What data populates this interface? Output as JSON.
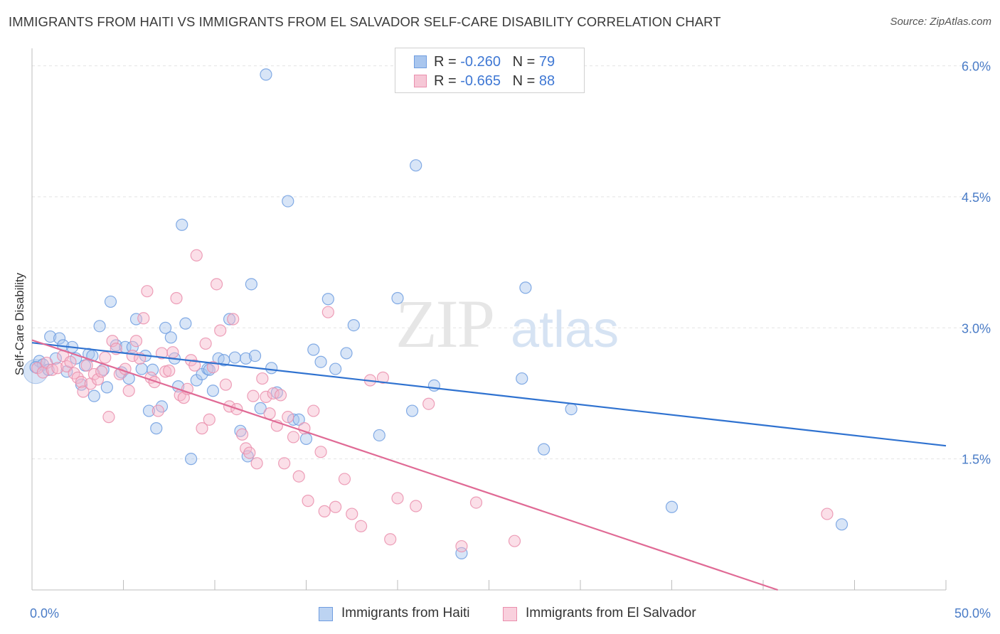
{
  "title": "IMMIGRANTS FROM HAITI VS IMMIGRANTS FROM EL SALVADOR SELF-CARE DISABILITY CORRELATION CHART",
  "source": "Source: ZipAtlas.com",
  "watermark": "ZIPatlas",
  "colors": {
    "haiti_fill": "#a9c6ee",
    "haiti_stroke": "#6f9de0",
    "haiti_line": "#2f72d0",
    "elsalvador_fill": "#f6b8cc",
    "elsalvador_stroke": "#ea8fad",
    "elsalvador_line": "#e06a95",
    "tick_text": "#4a7cc7"
  },
  "stats": {
    "haiti": {
      "r_label": "R =",
      "r_value": "-0.260",
      "n_label": "N =",
      "n_value": "79"
    },
    "elsalvador": {
      "r_label": "R =",
      "r_value": "-0.665",
      "n_label": "N =",
      "n_value": "88"
    }
  },
  "legend": {
    "haiti": "Immigrants from Haiti",
    "elsalvador": "Immigrants from El Salvador"
  },
  "chart_data": {
    "type": "scatter",
    "title": "IMMIGRANTS FROM HAITI VS IMMIGRANTS FROM EL SALVADOR SELF-CARE DISABILITY CORRELATION CHART",
    "ylabel": "Self-Care Disability",
    "xlabel": "",
    "xlim": [
      0,
      50
    ],
    "ylim": [
      0,
      6.2
    ],
    "x_tick_labels": [
      "0.0%",
      "50.0%"
    ],
    "y_ticks": [
      1.5,
      3.0,
      4.5,
      6.0
    ],
    "y_tick_labels": [
      "1.5%",
      "3.0%",
      "4.5%",
      "6.0%"
    ],
    "grid": true,
    "legend_position": "bottom",
    "series": [
      {
        "name": "Immigrants from Haiti",
        "trend": {
          "x": [
            0,
            50
          ],
          "y": [
            2.83,
            1.65
          ]
        },
        "points": [
          [
            0.4,
            2.62
          ],
          [
            0.6,
            2.58
          ],
          [
            0.9,
            2.52
          ],
          [
            1.0,
            2.9
          ],
          [
            1.5,
            2.88
          ],
          [
            1.7,
            2.8
          ],
          [
            1.9,
            2.5
          ],
          [
            2.2,
            2.78
          ],
          [
            2.4,
            2.65
          ],
          [
            2.7,
            2.35
          ],
          [
            2.9,
            2.57
          ],
          [
            3.1,
            2.7
          ],
          [
            3.3,
            2.68
          ],
          [
            3.4,
            2.22
          ],
          [
            3.7,
            3.02
          ],
          [
            3.9,
            2.52
          ],
          [
            4.1,
            2.32
          ],
          [
            4.3,
            3.3
          ],
          [
            4.6,
            2.8
          ],
          [
            4.9,
            2.49
          ],
          [
            5.1,
            2.78
          ],
          [
            5.3,
            2.42
          ],
          [
            5.5,
            2.78
          ],
          [
            5.7,
            3.1
          ],
          [
            6.0,
            2.53
          ],
          [
            6.2,
            2.68
          ],
          [
            6.4,
            2.05
          ],
          [
            6.6,
            2.52
          ],
          [
            6.8,
            1.85
          ],
          [
            7.1,
            2.1
          ],
          [
            7.3,
            3.0
          ],
          [
            7.6,
            2.89
          ],
          [
            7.8,
            2.65
          ],
          [
            8.0,
            2.33
          ],
          [
            8.2,
            4.18
          ],
          [
            8.4,
            3.05
          ],
          [
            8.7,
            1.5
          ],
          [
            9.0,
            2.4
          ],
          [
            9.3,
            2.47
          ],
          [
            9.6,
            2.53
          ],
          [
            9.9,
            2.28
          ],
          [
            10.2,
            2.65
          ],
          [
            10.5,
            2.63
          ],
          [
            10.8,
            3.1
          ],
          [
            11.1,
            2.66
          ],
          [
            11.4,
            1.82
          ],
          [
            11.7,
            2.65
          ],
          [
            12.0,
            3.5
          ],
          [
            12.2,
            2.68
          ],
          [
            12.5,
            2.08
          ],
          [
            12.8,
            5.9
          ],
          [
            13.1,
            2.54
          ],
          [
            13.4,
            2.26
          ],
          [
            14.0,
            4.45
          ],
          [
            14.3,
            1.95
          ],
          [
            14.6,
            1.95
          ],
          [
            15.0,
            1.73
          ],
          [
            15.4,
            2.75
          ],
          [
            15.8,
            2.61
          ],
          [
            16.2,
            3.33
          ],
          [
            16.6,
            2.53
          ],
          [
            17.2,
            2.71
          ],
          [
            17.6,
            3.03
          ],
          [
            19.0,
            1.77
          ],
          [
            20.0,
            3.34
          ],
          [
            20.8,
            2.05
          ],
          [
            21.0,
            4.86
          ],
          [
            22.0,
            2.34
          ],
          [
            23.5,
            0.42
          ],
          [
            26.8,
            2.42
          ],
          [
            27.0,
            3.46
          ],
          [
            28.0,
            1.61
          ],
          [
            29.5,
            2.07
          ],
          [
            35.0,
            0.95
          ],
          [
            44.3,
            0.75
          ],
          [
            0.2,
            2.55
          ],
          [
            1.3,
            2.65
          ],
          [
            9.7,
            2.52
          ],
          [
            11.8,
            1.53
          ]
        ]
      },
      {
        "name": "Immigrants from El Salvador",
        "trend": {
          "x": [
            0,
            40.8
          ],
          "y": [
            2.86,
            0.0
          ]
        },
        "points": [
          [
            0.3,
            2.54
          ],
          [
            0.6,
            2.49
          ],
          [
            0.8,
            2.6
          ],
          [
            1.1,
            2.52
          ],
          [
            1.4,
            2.54
          ],
          [
            1.7,
            2.68
          ],
          [
            1.9,
            2.56
          ],
          [
            2.1,
            2.61
          ],
          [
            2.3,
            2.48
          ],
          [
            2.5,
            2.43
          ],
          [
            2.7,
            2.38
          ],
          [
            2.8,
            2.27
          ],
          [
            3.0,
            2.57
          ],
          [
            3.2,
            2.36
          ],
          [
            3.4,
            2.47
          ],
          [
            3.6,
            2.41
          ],
          [
            3.8,
            2.5
          ],
          [
            4.0,
            2.66
          ],
          [
            4.2,
            1.98
          ],
          [
            4.4,
            2.85
          ],
          [
            4.6,
            2.76
          ],
          [
            4.8,
            2.47
          ],
          [
            5.1,
            2.53
          ],
          [
            5.3,
            2.28
          ],
          [
            5.5,
            2.68
          ],
          [
            5.7,
            2.85
          ],
          [
            5.9,
            2.65
          ],
          [
            6.1,
            3.11
          ],
          [
            6.3,
            3.42
          ],
          [
            6.5,
            2.43
          ],
          [
            6.7,
            2.38
          ],
          [
            6.9,
            2.05
          ],
          [
            7.1,
            2.71
          ],
          [
            7.3,
            2.5
          ],
          [
            7.5,
            2.51
          ],
          [
            7.7,
            2.72
          ],
          [
            7.9,
            3.34
          ],
          [
            8.1,
            2.23
          ],
          [
            8.3,
            2.2
          ],
          [
            8.5,
            2.3
          ],
          [
            8.7,
            2.63
          ],
          [
            8.9,
            2.57
          ],
          [
            9.0,
            3.83
          ],
          [
            9.3,
            1.85
          ],
          [
            9.5,
            2.82
          ],
          [
            9.7,
            1.95
          ],
          [
            9.9,
            2.55
          ],
          [
            10.1,
            3.5
          ],
          [
            10.3,
            2.97
          ],
          [
            10.6,
            2.35
          ],
          [
            10.8,
            2.1
          ],
          [
            11.0,
            3.1
          ],
          [
            11.2,
            2.07
          ],
          [
            11.5,
            1.78
          ],
          [
            11.7,
            1.62
          ],
          [
            11.9,
            1.57
          ],
          [
            12.1,
            2.22
          ],
          [
            12.3,
            1.45
          ],
          [
            12.6,
            2.42
          ],
          [
            12.8,
            2.21
          ],
          [
            13.0,
            2.02
          ],
          [
            13.2,
            2.25
          ],
          [
            13.4,
            1.88
          ],
          [
            13.6,
            2.23
          ],
          [
            13.8,
            1.45
          ],
          [
            14.0,
            1.98
          ],
          [
            14.3,
            1.75
          ],
          [
            14.6,
            1.3
          ],
          [
            14.9,
            1.85
          ],
          [
            15.1,
            1.02
          ],
          [
            15.4,
            2.05
          ],
          [
            15.8,
            1.58
          ],
          [
            16.2,
            3.18
          ],
          [
            16.6,
            0.95
          ],
          [
            17.1,
            1.27
          ],
          [
            17.5,
            0.87
          ],
          [
            18.0,
            0.73
          ],
          [
            18.5,
            2.4
          ],
          [
            19.2,
            2.43
          ],
          [
            19.6,
            0.58
          ],
          [
            20.0,
            1.05
          ],
          [
            21.0,
            0.96
          ],
          [
            21.7,
            2.13
          ],
          [
            23.5,
            0.5
          ],
          [
            24.3,
            1.0
          ],
          [
            26.4,
            0.56
          ],
          [
            43.5,
            0.87
          ],
          [
            16.0,
            0.9
          ]
        ]
      }
    ]
  }
}
